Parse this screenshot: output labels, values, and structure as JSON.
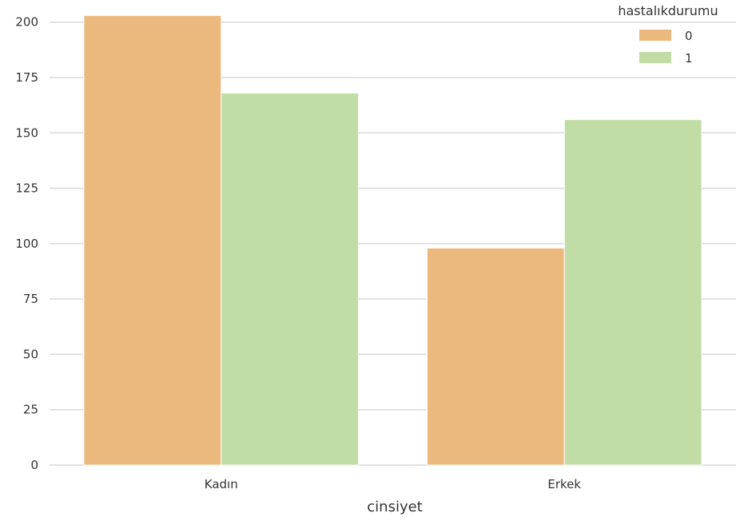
{
  "chart_data": {
    "type": "bar",
    "categories": [
      "Kadın",
      "Erkek"
    ],
    "series": [
      {
        "name": "0",
        "values": [
          203,
          98
        ],
        "color": "#ebb97d"
      },
      {
        "name": "1",
        "values": [
          168,
          156
        ],
        "color": "#c1dca5"
      }
    ],
    "xlabel": "cinsiyet",
    "ylabel": "",
    "ylim": [
      0,
      210
    ],
    "yticks": [
      0,
      25,
      50,
      75,
      100,
      125,
      150,
      175,
      200
    ],
    "grid": "horizontal",
    "legend": {
      "title": "hastalıkdurumu",
      "placement": "top-right"
    }
  }
}
